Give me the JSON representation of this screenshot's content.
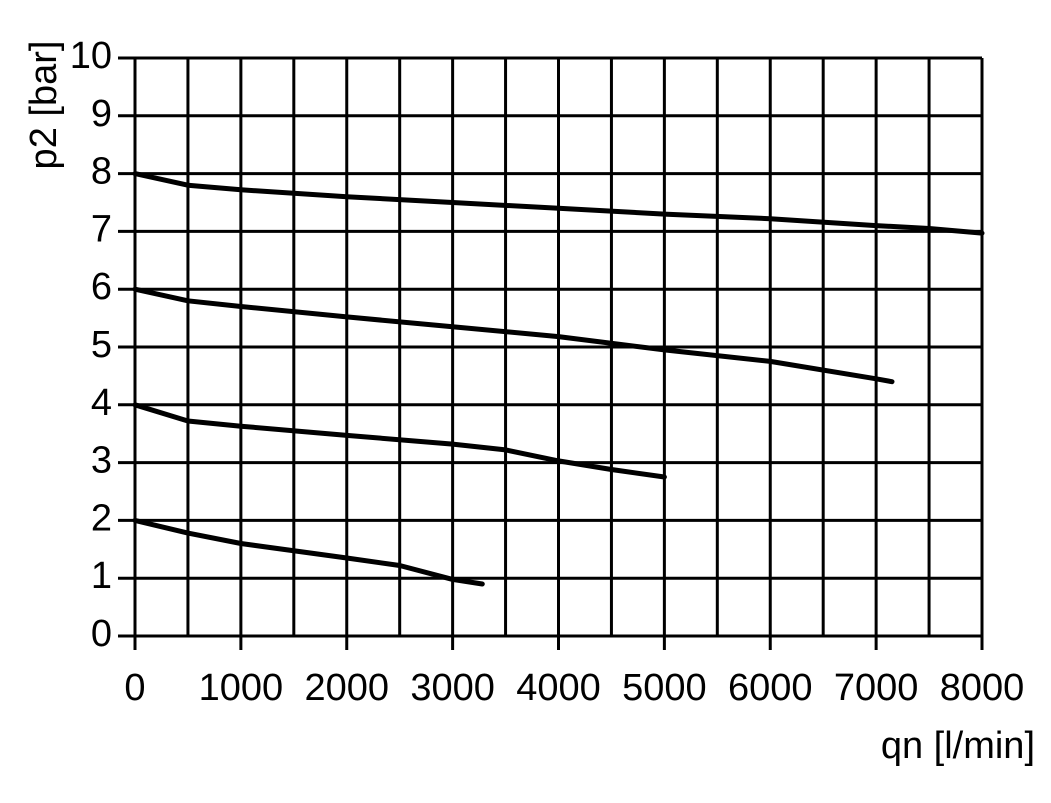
{
  "chart_data": {
    "type": "line",
    "x_label": "qn [l/min]",
    "y_label": "p2 [bar]",
    "xlim": [
      0,
      8000
    ],
    "ylim": [
      0,
      10
    ],
    "xticks": [
      0,
      1000,
      2000,
      3000,
      4000,
      5000,
      6000,
      7000,
      8000
    ],
    "x_minor_ticks": [
      500,
      1500,
      2500,
      3500,
      4500,
      5500,
      6500,
      7500
    ],
    "yticks": [
      0,
      1,
      2,
      3,
      4,
      5,
      6,
      7,
      8,
      9,
      10
    ],
    "grid": true,
    "series": [
      {
        "color": "#000000",
        "x": [
          0,
          500,
          1000,
          2000,
          3000,
          4000,
          5000,
          6000,
          7000,
          7500,
          8000
        ],
        "values": [
          8,
          7.8,
          7.72,
          7.6,
          7.5,
          7.4,
          7.3,
          7.22,
          7.1,
          7.05,
          6.97
        ]
      },
      {
        "color": "#000000",
        "x": [
          0,
          500,
          1000,
          2000,
          3000,
          4000,
          5000,
          6000,
          7000,
          7150
        ],
        "values": [
          6,
          5.8,
          5.7,
          5.52,
          5.35,
          5.18,
          4.95,
          4.75,
          4.45,
          4.4
        ]
      },
      {
        "color": "#000000",
        "x": [
          0,
          500,
          1000,
          2000,
          3000,
          3500,
          4000,
          4500,
          5000
        ],
        "values": [
          4,
          3.72,
          3.63,
          3.47,
          3.32,
          3.22,
          3.03,
          2.88,
          2.75
        ]
      },
      {
        "color": "#000000",
        "x": [
          0,
          500,
          1000,
          2000,
          2500,
          3000,
          3280
        ],
        "values": [
          2,
          1.78,
          1.6,
          1.35,
          1.22,
          0.98,
          0.9
        ]
      }
    ]
  }
}
